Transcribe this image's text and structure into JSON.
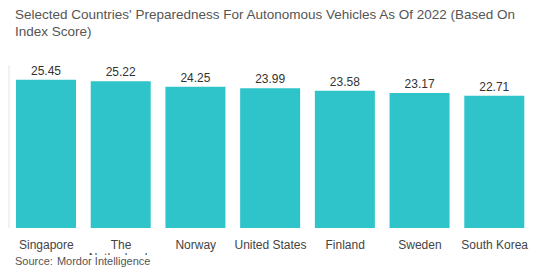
{
  "chart_data": {
    "type": "bar",
    "title": "Selected Countries' Preparedness For Autonomous Vehicles As Of 2022 (Based On Index Score)",
    "source": "Source: Mordor Intelligence",
    "categories": [
      "Singapore",
      "The Netherlands",
      "Norway",
      "United States",
      "Finland",
      "Sweden",
      "South Korea"
    ],
    "values": [
      25.45,
      25.22,
      24.25,
      23.99,
      23.58,
      23.17,
      22.71
    ],
    "color": "#2fc4c9",
    "ylim": [
      0,
      28
    ],
    "grid": false,
    "data_labels": true,
    "tick_labels": "x"
  }
}
